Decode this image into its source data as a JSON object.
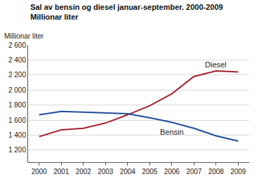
{
  "chart_data": {
    "type": "line",
    "title": "Sal av bensin og diesel januar-september. 2000-2009",
    "subtitle": "Millionar liter",
    "y_label": "Millionar liter",
    "categories": [
      "2000",
      "2001",
      "2002",
      "2003",
      "2004",
      "2005",
      "2006",
      "2007",
      "2008",
      "2009"
    ],
    "series": [
      {
        "name": "Diesel",
        "color": "#a8202e",
        "values": [
          1380,
          1470,
          1490,
          1560,
          1670,
          1790,
          1950,
          2180,
          2255,
          2240
        ]
      },
      {
        "name": "Bensin",
        "color": "#1f4e9c",
        "values": [
          1670,
          1715,
          1705,
          1695,
          1685,
          1630,
          1570,
          1490,
          1390,
          1320
        ]
      }
    ],
    "annotations": [
      {
        "text": "Diesel",
        "x": "2008",
        "y": 2340
      },
      {
        "text": "Bensin",
        "x": "2006",
        "y": 1440
      }
    ],
    "ylim": [
      1040,
      2600
    ],
    "yticks": [
      {
        "value": 1200,
        "label": "1 200"
      },
      {
        "value": 1400,
        "label": "1 400"
      },
      {
        "value": 1600,
        "label": "1 600"
      },
      {
        "value": 1800,
        "label": "1 800"
      },
      {
        "value": 2000,
        "label": "2 000"
      },
      {
        "value": 2200,
        "label": "2 200"
      },
      {
        "value": 2400,
        "label": "2 400"
      },
      {
        "value": 2600,
        "label": "2 600"
      }
    ],
    "grid": true
  }
}
